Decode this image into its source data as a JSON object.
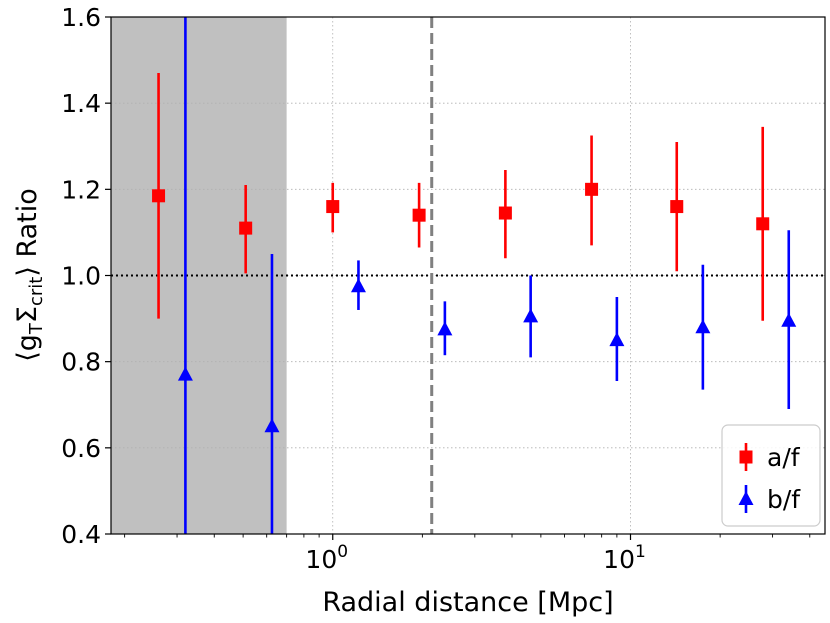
{
  "chart_data": {
    "type": "scatter",
    "xlabel": "Radial distance [Mpc]",
    "ylabel": {
      "prefix": "⟨g",
      "sub1": "T",
      "mid": "Σ",
      "sub2": "crit",
      "suffix": "⟩ Ratio"
    },
    "xscale": "log",
    "xlim": [
      0.18,
      45
    ],
    "ylim": [
      0.4,
      1.6
    ],
    "y_ticks": [
      "0.4",
      "0.6",
      "0.8",
      "1.0",
      "1.2",
      "1.4",
      "1.6"
    ],
    "x_ticks": [
      {
        "value": 1,
        "base": "10",
        "exp": "0"
      },
      {
        "value": 10,
        "base": "10",
        "exp": "1"
      }
    ],
    "grid": true,
    "shaded_region": {
      "x": [
        0.18,
        0.7
      ],
      "color": "#c0c0c0"
    },
    "vertical_line": {
      "x": 2.15,
      "style": "dashed",
      "color": "#808080"
    },
    "reference_line": {
      "y": 1.0,
      "style": "dotted",
      "color": "#000000"
    },
    "legend_position": "lower-right",
    "series": [
      {
        "name": "a/f",
        "marker": "square",
        "color": "#ff0000",
        "points": [
          {
            "x": 0.26,
            "y": 1.185,
            "lo": 0.9,
            "hi": 1.47
          },
          {
            "x": 0.51,
            "y": 1.11,
            "lo": 1.005,
            "hi": 1.21
          },
          {
            "x": 1.0,
            "y": 1.16,
            "lo": 1.1,
            "hi": 1.215
          },
          {
            "x": 1.95,
            "y": 1.14,
            "lo": 1.065,
            "hi": 1.215
          },
          {
            "x": 3.8,
            "y": 1.145,
            "lo": 1.04,
            "hi": 1.245
          },
          {
            "x": 7.4,
            "y": 1.2,
            "lo": 1.07,
            "hi": 1.325
          },
          {
            "x": 14.3,
            "y": 1.16,
            "lo": 1.01,
            "hi": 1.31
          },
          {
            "x": 27.8,
            "y": 1.12,
            "lo": 0.895,
            "hi": 1.345
          }
        ]
      },
      {
        "name": "b/f",
        "marker": "triangle",
        "color": "#0000ff",
        "points": [
          {
            "x": 0.32,
            "y": 0.77,
            "lo": 0.4,
            "hi": 1.6
          },
          {
            "x": 0.625,
            "y": 0.65,
            "lo": 0.4,
            "hi": 1.05
          },
          {
            "x": 1.22,
            "y": 0.975,
            "lo": 0.92,
            "hi": 1.035
          },
          {
            "x": 2.38,
            "y": 0.875,
            "lo": 0.815,
            "hi": 0.94
          },
          {
            "x": 4.62,
            "y": 0.905,
            "lo": 0.81,
            "hi": 1.0
          },
          {
            "x": 9.0,
            "y": 0.85,
            "lo": 0.755,
            "hi": 0.95
          },
          {
            "x": 17.5,
            "y": 0.88,
            "lo": 0.735,
            "hi": 1.025
          },
          {
            "x": 34.0,
            "y": 0.895,
            "lo": 0.69,
            "hi": 1.105
          }
        ]
      }
    ]
  }
}
